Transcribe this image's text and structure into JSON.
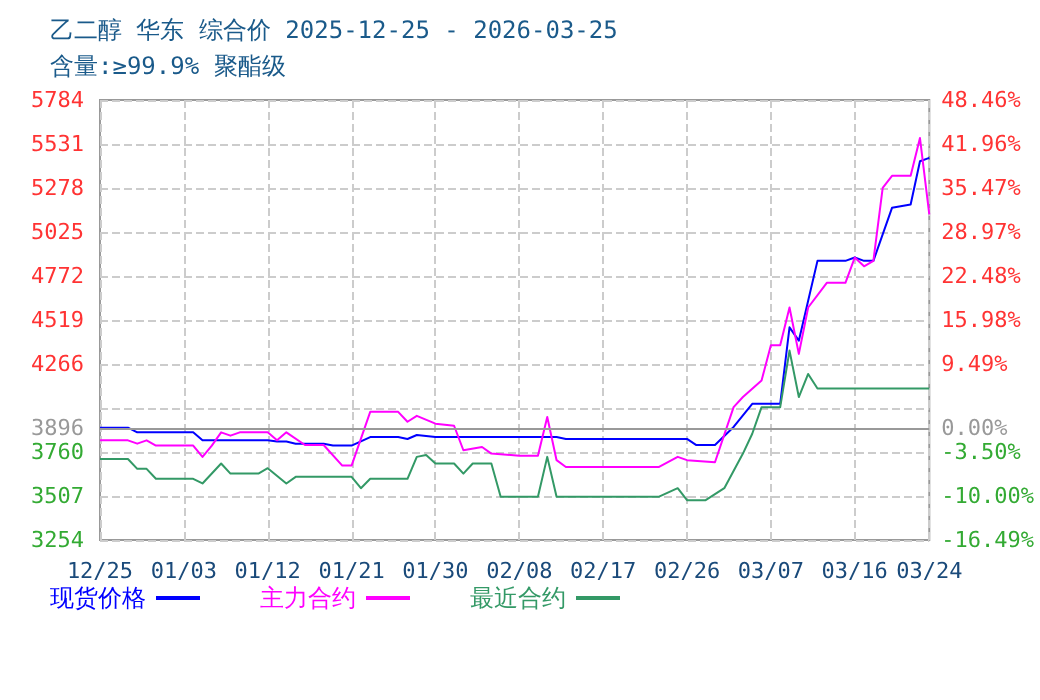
{
  "chart_data": {
    "type": "line",
    "title": "乙二醇 华东 综合价 2025-12-25 - 2026-03-25",
    "subtitle": "含量:≥99.9% 聚酯级",
    "xlim": [
      "2025-12-25",
      "2026-03-24"
    ],
    "xticks": [
      {
        "value": "2025-12-25",
        "label": "12/25"
      },
      {
        "value": "2026-01-03",
        "label": "01/03"
      },
      {
        "value": "2026-01-12",
        "label": "01/12"
      },
      {
        "value": "2026-01-21",
        "label": "01/21"
      },
      {
        "value": "2026-01-30",
        "label": "01/30"
      },
      {
        "value": "2026-02-08",
        "label": "02/08"
      },
      {
        "value": "2026-02-17",
        "label": "02/17"
      },
      {
        "value": "2026-02-26",
        "label": "02/26"
      },
      {
        "value": "2026-03-07",
        "label": "03/07"
      },
      {
        "value": "2026-03-16",
        "label": "03/16"
      },
      {
        "value": "2026-03-24",
        "label": "03/24"
      }
    ],
    "ylim": [
      3254,
      5784
    ],
    "yticks": [
      3254,
      3507,
      3760,
      3896,
      {
        "value": 4013,
        "label": null
      },
      4266,
      4519,
      4772,
      5025,
      5278,
      5531,
      5784
    ],
    "y2lim": [
      -16.49,
      48.46
    ],
    "y2ticks": [
      {
        "value": -16.49,
        "label": "-16.49%"
      },
      {
        "value": -10.0,
        "label": "-10.00%"
      },
      {
        "value": -3.5,
        "label": "-3.50%"
      },
      {
        "value": 0,
        "label": "0.00%"
      },
      {
        "value": 9.49,
        "label": "9.49%"
      },
      {
        "value": 15.98,
        "label": "15.98%"
      },
      {
        "value": 22.48,
        "label": "22.48%"
      },
      {
        "value": 28.97,
        "label": "28.97%"
      },
      {
        "value": 35.47,
        "label": "35.47%"
      },
      {
        "value": 41.96,
        "label": "41.96%"
      },
      {
        "value": 48.46,
        "label": "48.46%"
      }
    ],
    "ref_lines": [
      {
        "axis": "y",
        "value": 3896,
        "color": "#999999",
        "line_style": "solid"
      }
    ],
    "grid": true,
    "legend": "bottom",
    "marker": "none",
    "line_style": "solid",
    "series": [
      {
        "name": "现货价格",
        "color": "#0000ff",
        "x": [
          "2025-12-25",
          "2025-12-28",
          "2025-12-29",
          "2026-01-04",
          "2026-01-05",
          "2026-01-12",
          "2026-01-13",
          "2026-01-14",
          "2026-01-15",
          "2026-01-18",
          "2026-01-19",
          "2026-01-21",
          "2026-01-23",
          "2026-01-26",
          "2026-01-27",
          "2026-01-28",
          "2026-01-30",
          "2026-02-12",
          "2026-02-13",
          "2026-02-26",
          "2026-02-27",
          "2026-03-01",
          "2026-03-03",
          "2026-03-05",
          "2026-03-08",
          "2026-03-09",
          "2026-03-10",
          "2026-03-11",
          "2026-03-12",
          "2026-03-15",
          "2026-03-16",
          "2026-03-17",
          "2026-03-18",
          "2026-03-20",
          "2026-03-22",
          "2026-03-23",
          "2026-03-24"
        ],
        "values": [
          3900,
          3900,
          3873,
          3873,
          3827,
          3827,
          3820,
          3820,
          3808,
          3808,
          3797,
          3797,
          3846,
          3846,
          3835,
          3858,
          3846,
          3846,
          3835,
          3835,
          3800,
          3800,
          3904,
          4037,
          4037,
          4477,
          4400,
          4630,
          4859,
          4859,
          4878,
          4859,
          4859,
          5164,
          5183,
          5432,
          5451
        ]
      },
      {
        "name": "主力合约",
        "color": "#ff00ff",
        "x": [
          "2025-12-25",
          "2025-12-28",
          "2025-12-29",
          "2025-12-30",
          "2025-12-31",
          "2026-01-04",
          "2026-01-05",
          "2026-01-06",
          "2026-01-07",
          "2026-01-08",
          "2026-01-09",
          "2026-01-12",
          "2026-01-13",
          "2026-01-14",
          "2026-01-16",
          "2026-01-18",
          "2026-01-20",
          "2026-01-21",
          "2026-01-23",
          "2026-01-26",
          "2026-01-27",
          "2026-01-28",
          "2026-01-30",
          "2026-02-01",
          "2026-02-02",
          "2026-02-04",
          "2026-02-05",
          "2026-02-08",
          "2026-02-10",
          "2026-02-11",
          "2026-02-12",
          "2026-02-13",
          "2026-02-23",
          "2026-02-25",
          "2026-02-26",
          "2026-03-01",
          "2026-03-03",
          "2026-03-04",
          "2026-03-06",
          "2026-03-07",
          "2026-03-08",
          "2026-03-09",
          "2026-03-10",
          "2026-03-11",
          "2026-03-13",
          "2026-03-15",
          "2026-03-16",
          "2026-03-17",
          "2026-03-18",
          "2026-03-19",
          "2026-03-20",
          "2026-03-22",
          "2026-03-23",
          "2026-03-24"
        ],
        "values": [
          3827,
          3827,
          3808,
          3827,
          3797,
          3797,
          3732,
          3797,
          3873,
          3854,
          3873,
          3873,
          3827,
          3873,
          3800,
          3800,
          3682,
          3682,
          3991,
          3991,
          3934,
          3968,
          3923,
          3911,
          3770,
          3789,
          3751,
          3739,
          3739,
          3961,
          3713,
          3674,
          3674,
          3732,
          3713,
          3701,
          4018,
          4076,
          4171,
          4374,
          4374,
          4591,
          4324,
          4591,
          4733,
          4733,
          4878,
          4828,
          4859,
          5279,
          5348,
          5348,
          5565,
          5126
        ]
      },
      {
        "name": "最近合约",
        "color": "#339966",
        "x": [
          "2025-12-25",
          "2025-12-28",
          "2025-12-29",
          "2025-12-30",
          "2025-12-31",
          "2026-01-04",
          "2026-01-05",
          "2026-01-07",
          "2026-01-08",
          "2026-01-11",
          "2026-01-12",
          "2026-01-14",
          "2026-01-15",
          "2026-01-21",
          "2026-01-22",
          "2026-01-23",
          "2026-01-27",
          "2026-01-28",
          "2026-01-29",
          "2026-01-30",
          "2026-02-01",
          "2026-02-02",
          "2026-02-03",
          "2026-02-05",
          "2026-02-06",
          "2026-02-10",
          "2026-02-11",
          "2026-02-12",
          "2026-02-23",
          "2026-02-25",
          "2026-02-26",
          "2026-02-28",
          "2026-03-02",
          "2026-03-04",
          "2026-03-05",
          "2026-03-06",
          "2026-03-08",
          "2026-03-09",
          "2026-03-10",
          "2026-03-11",
          "2026-03-12",
          "2026-03-24"
        ],
        "values": [
          3720,
          3720,
          3663,
          3663,
          3606,
          3606,
          3579,
          3694,
          3636,
          3636,
          3667,
          3579,
          3617,
          3617,
          3552,
          3606,
          3606,
          3732,
          3743,
          3694,
          3694,
          3636,
          3694,
          3694,
          3503,
          3503,
          3732,
          3503,
          3503,
          3552,
          3483,
          3483,
          3552,
          3751,
          3865,
          4018,
          4018,
          4343,
          4076,
          4209,
          4125,
          4125
        ]
      }
    ]
  }
}
